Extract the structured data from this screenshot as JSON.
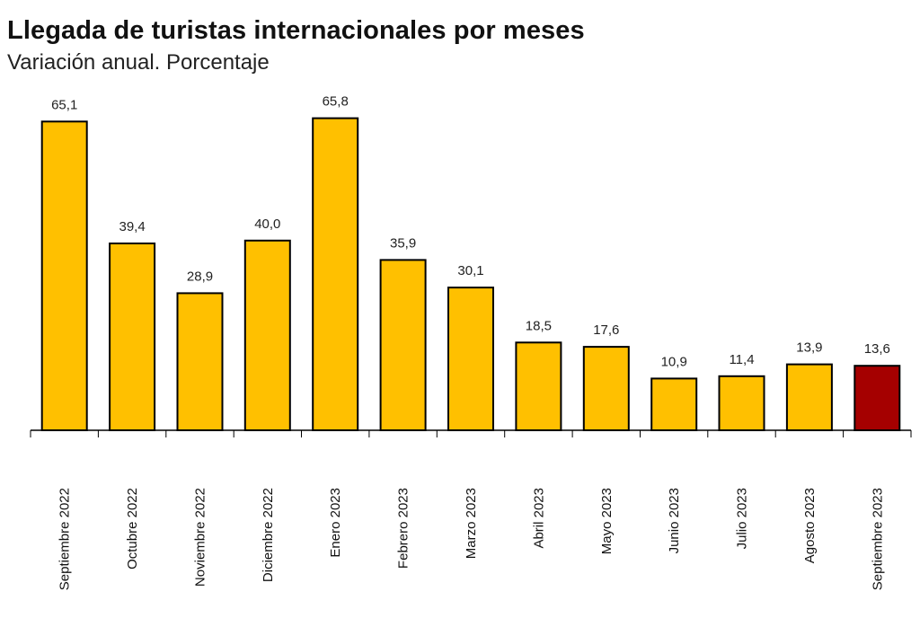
{
  "chart_data": {
    "type": "bar",
    "title": "Llegada de turistas internacionales por meses",
    "subtitle": "Variación anual. Porcentaje",
    "xlabel": "",
    "ylabel": "",
    "ylim": [
      0,
      70
    ],
    "grid": false,
    "categories": [
      "Septiembre 2022",
      "Octubre 2022",
      "Noviembre 2022",
      "Diciembre 2022",
      "Enero 2023",
      "Febrero 2023",
      "Marzo 2023",
      "Abril 2023",
      "Mayo 2023",
      "Junio 2023",
      "Julio 2023",
      "Agosto 2023",
      "Septiembre 2023"
    ],
    "values": [
      65.1,
      39.4,
      28.9,
      40.0,
      65.8,
      35.9,
      30.1,
      18.5,
      17.6,
      10.9,
      11.4,
      13.9,
      13.6
    ],
    "value_labels": [
      "65,1",
      "39,4",
      "28,9",
      "40,0",
      "65,8",
      "35,9",
      "30,1",
      "18,5",
      "17,6",
      "10,9",
      "11,4",
      "13,9",
      "13,6"
    ],
    "highlight_index": 12,
    "colors": {
      "bar": "#FFC000",
      "highlight": "#A50000",
      "outline": "#000000"
    }
  }
}
